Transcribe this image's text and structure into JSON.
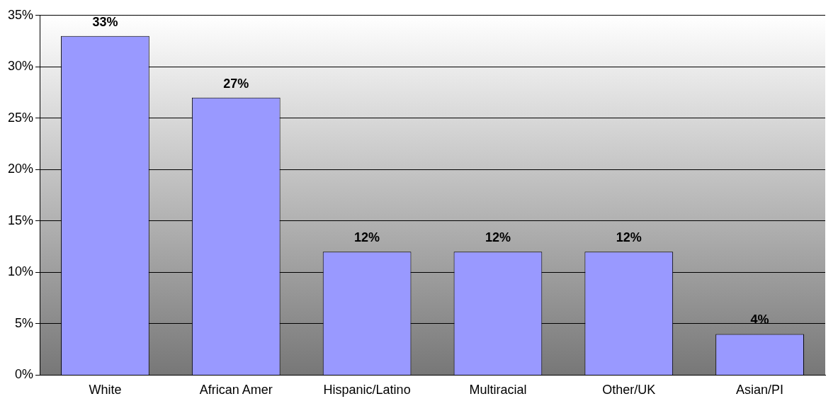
{
  "chart_data": {
    "type": "bar",
    "categories": [
      "White",
      "African Amer",
      "Hispanic/Latino",
      "Multiracial",
      "Other/UK",
      "Asian/PI"
    ],
    "values": [
      33,
      27,
      12,
      12,
      12,
      4
    ],
    "value_labels": [
      "33%",
      "27%",
      "12%",
      "12%",
      "12%",
      "4%"
    ],
    "color": "#9999ff",
    "ylim": [
      0,
      35
    ],
    "yticks": [
      {
        "value": 0,
        "label": "0%"
      },
      {
        "value": 5,
        "label": "5%"
      },
      {
        "value": 10,
        "label": "10%"
      },
      {
        "value": 15,
        "label": "15%"
      },
      {
        "value": 20,
        "label": "20%"
      },
      {
        "value": 25,
        "label": "25%"
      },
      {
        "value": 30,
        "label": "30%"
      },
      {
        "value": 35,
        "label": "35%"
      }
    ],
    "grid": "y",
    "legend": false
  }
}
